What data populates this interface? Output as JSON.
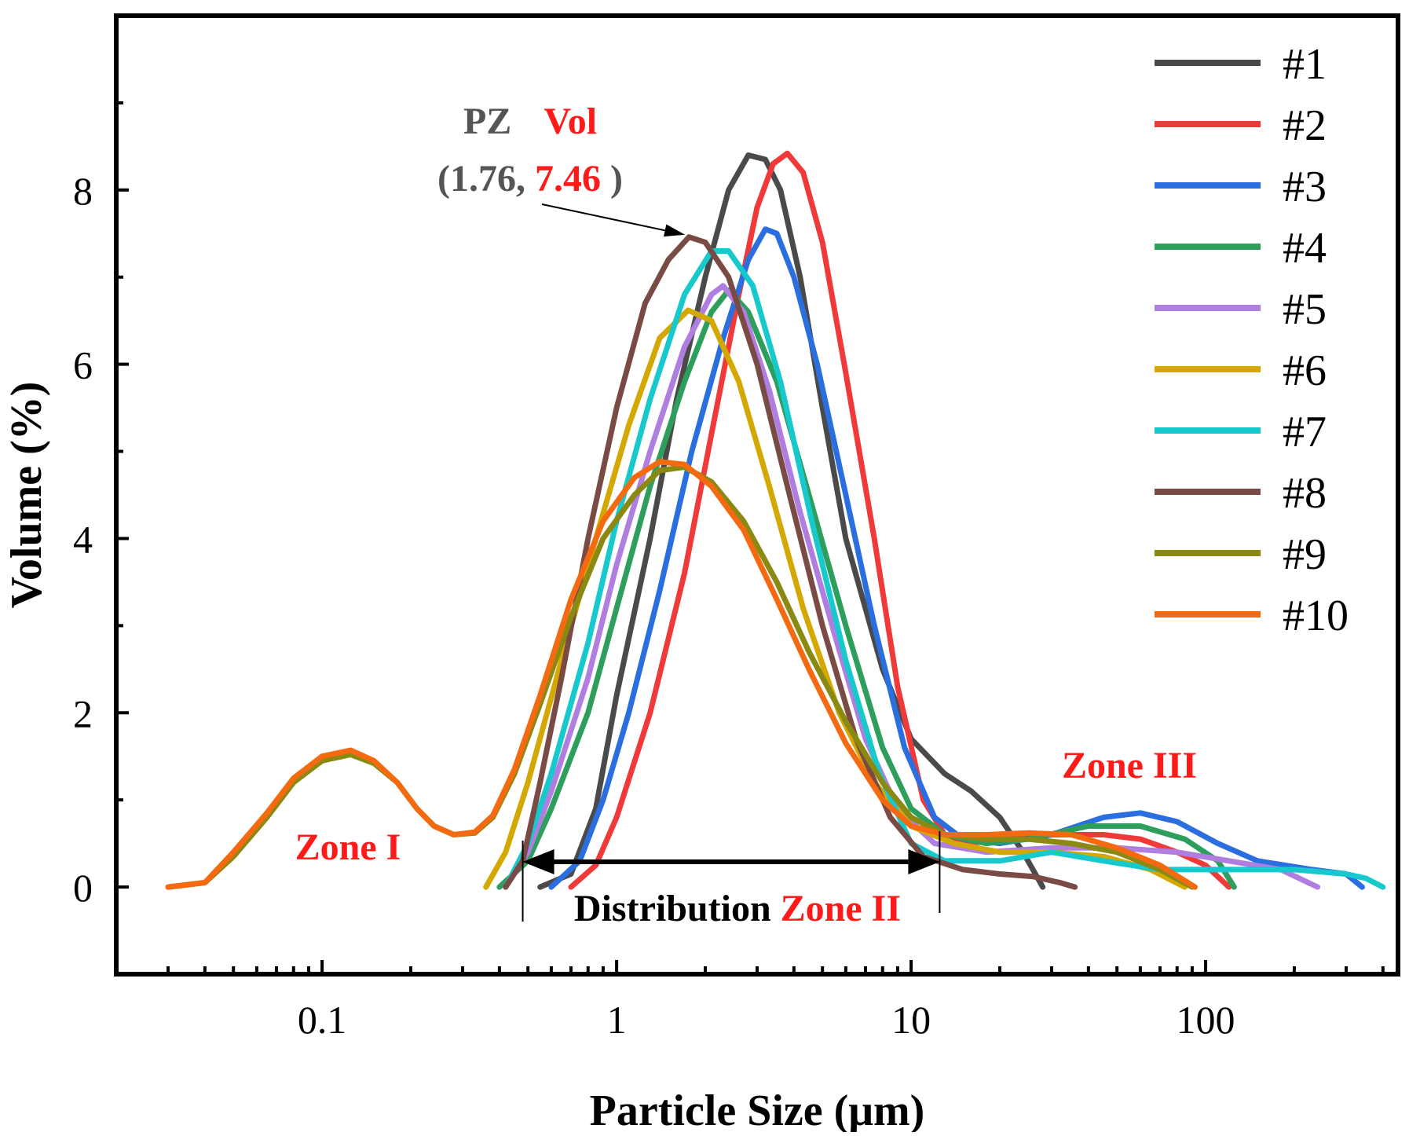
{
  "chart_data": {
    "type": "line",
    "title": "",
    "xlabel": "Particle Size (μm)",
    "ylabel": "Volume (%)",
    "xscale": "log",
    "xlim": [
      0.02,
      450
    ],
    "ylim": [
      -1,
      10
    ],
    "xticks": [
      0.1,
      1,
      10,
      100
    ],
    "xtick_labels": [
      "0.1",
      "1",
      "10",
      "100"
    ],
    "yticks": [
      0,
      2,
      4,
      6,
      8
    ],
    "ytick_labels": [
      "0",
      "2",
      "4",
      "6",
      "8"
    ],
    "grid": false,
    "legend_position": "top-right",
    "series": [
      {
        "name": "#1",
        "color": "#4a4a4a",
        "points": [
          [
            0.55,
            0
          ],
          [
            0.7,
            0.15
          ],
          [
            0.85,
            0.9
          ],
          [
            1.0,
            2.2
          ],
          [
            1.3,
            4.0
          ],
          [
            1.6,
            5.6
          ],
          [
            2.0,
            7.0
          ],
          [
            2.4,
            8.0
          ],
          [
            2.8,
            8.4
          ],
          [
            3.2,
            8.35
          ],
          [
            3.6,
            8.0
          ],
          [
            4.2,
            7.0
          ],
          [
            5.0,
            5.5
          ],
          [
            6.0,
            4.0
          ],
          [
            8.0,
            2.5
          ],
          [
            10,
            1.7
          ],
          [
            13,
            1.3
          ],
          [
            16,
            1.1
          ],
          [
            20,
            0.8
          ],
          [
            24,
            0.4
          ],
          [
            28,
            0
          ]
        ]
      },
      {
        "name": "#2",
        "color": "#f03a3a",
        "points": [
          [
            0.7,
            0
          ],
          [
            0.85,
            0.25
          ],
          [
            1.0,
            0.8
          ],
          [
            1.3,
            2.0
          ],
          [
            1.7,
            3.6
          ],
          [
            2.1,
            5.2
          ],
          [
            2.6,
            6.8
          ],
          [
            3.0,
            7.8
          ],
          [
            3.4,
            8.3
          ],
          [
            3.8,
            8.42
          ],
          [
            4.3,
            8.2
          ],
          [
            5.0,
            7.4
          ],
          [
            6.0,
            5.9
          ],
          [
            7.5,
            4.0
          ],
          [
            9.0,
            2.3
          ],
          [
            11,
            1.0
          ],
          [
            13,
            0.6
          ],
          [
            16,
            0.5
          ],
          [
            20,
            0.55
          ],
          [
            30,
            0.6
          ],
          [
            45,
            0.6
          ],
          [
            60,
            0.55
          ],
          [
            80,
            0.4
          ],
          [
            100,
            0.25
          ],
          [
            120,
            0
          ]
        ]
      },
      {
        "name": "#3",
        "color": "#2a6ee0",
        "points": [
          [
            0.6,
            0
          ],
          [
            0.75,
            0.3
          ],
          [
            0.9,
            1.0
          ],
          [
            1.1,
            2.0
          ],
          [
            1.4,
            3.4
          ],
          [
            1.8,
            5.0
          ],
          [
            2.3,
            6.3
          ],
          [
            2.8,
            7.2
          ],
          [
            3.2,
            7.55
          ],
          [
            3.5,
            7.5
          ],
          [
            4.0,
            7.0
          ],
          [
            4.8,
            6.0
          ],
          [
            6.0,
            4.5
          ],
          [
            7.5,
            3.0
          ],
          [
            9.5,
            1.6
          ],
          [
            12,
            0.8
          ],
          [
            15,
            0.55
          ],
          [
            20,
            0.5
          ],
          [
            30,
            0.6
          ],
          [
            45,
            0.8
          ],
          [
            60,
            0.85
          ],
          [
            80,
            0.75
          ],
          [
            110,
            0.5
          ],
          [
            150,
            0.3
          ],
          [
            230,
            0.2
          ],
          [
            300,
            0.15
          ],
          [
            340,
            0
          ]
        ]
      },
      {
        "name": "#4",
        "color": "#2e9e5c",
        "points": [
          [
            0.4,
            0
          ],
          [
            0.5,
            0.3
          ],
          [
            0.6,
            0.9
          ],
          [
            0.8,
            2.0
          ],
          [
            1.0,
            3.2
          ],
          [
            1.3,
            4.6
          ],
          [
            1.7,
            5.8
          ],
          [
            2.1,
            6.6
          ],
          [
            2.4,
            6.85
          ],
          [
            2.8,
            6.6
          ],
          [
            3.5,
            5.8
          ],
          [
            4.5,
            4.5
          ],
          [
            6.0,
            3.0
          ],
          [
            8.0,
            1.6
          ],
          [
            10,
            0.9
          ],
          [
            13,
            0.6
          ],
          [
            18,
            0.5
          ],
          [
            25,
            0.55
          ],
          [
            40,
            0.7
          ],
          [
            60,
            0.7
          ],
          [
            85,
            0.55
          ],
          [
            110,
            0.3
          ],
          [
            125,
            0
          ]
        ]
      },
      {
        "name": "#5",
        "color": "#b07ee0",
        "points": [
          [
            0.42,
            0
          ],
          [
            0.5,
            0.4
          ],
          [
            0.6,
            1.1
          ],
          [
            0.8,
            2.4
          ],
          [
            1.0,
            3.7
          ],
          [
            1.3,
            5.0
          ],
          [
            1.7,
            6.2
          ],
          [
            2.1,
            6.8
          ],
          [
            2.3,
            6.9
          ],
          [
            2.7,
            6.6
          ],
          [
            3.3,
            5.7
          ],
          [
            4.2,
            4.3
          ],
          [
            5.5,
            2.9
          ],
          [
            7.0,
            1.7
          ],
          [
            9.0,
            0.9
          ],
          [
            12,
            0.5
          ],
          [
            18,
            0.4
          ],
          [
            30,
            0.45
          ],
          [
            50,
            0.45
          ],
          [
            80,
            0.4
          ],
          [
            120,
            0.3
          ],
          [
            180,
            0.2
          ],
          [
            240,
            0
          ]
        ]
      },
      {
        "name": "#6",
        "color": "#d4a800",
        "points": [
          [
            0.36,
            0
          ],
          [
            0.42,
            0.4
          ],
          [
            0.5,
            1.2
          ],
          [
            0.65,
            2.6
          ],
          [
            0.85,
            4.0
          ],
          [
            1.1,
            5.3
          ],
          [
            1.4,
            6.3
          ],
          [
            1.75,
            6.62
          ],
          [
            2.1,
            6.5
          ],
          [
            2.6,
            5.8
          ],
          [
            3.3,
            4.6
          ],
          [
            4.3,
            3.2
          ],
          [
            5.7,
            2.0
          ],
          [
            7.5,
            1.2
          ],
          [
            10,
            0.7
          ],
          [
            14,
            0.5
          ],
          [
            20,
            0.4
          ],
          [
            30,
            0.4
          ],
          [
            45,
            0.35
          ],
          [
            65,
            0.2
          ],
          [
            85,
            0
          ]
        ]
      },
      {
        "name": "#7",
        "color": "#17c8cc",
        "points": [
          [
            0.42,
            0
          ],
          [
            0.5,
            0.5
          ],
          [
            0.6,
            1.3
          ],
          [
            0.8,
            2.8
          ],
          [
            1.0,
            4.2
          ],
          [
            1.3,
            5.6
          ],
          [
            1.7,
            6.8
          ],
          [
            2.1,
            7.3
          ],
          [
            2.4,
            7.3
          ],
          [
            2.9,
            6.9
          ],
          [
            3.6,
            5.8
          ],
          [
            4.6,
            4.2
          ],
          [
            6.0,
            2.6
          ],
          [
            7.8,
            1.3
          ],
          [
            10,
            0.5
          ],
          [
            13,
            0.3
          ],
          [
            20,
            0.3
          ],
          [
            30,
            0.4
          ],
          [
            45,
            0.3
          ],
          [
            70,
            0.2
          ],
          [
            120,
            0.2
          ],
          [
            200,
            0.2
          ],
          [
            300,
            0.15
          ],
          [
            350,
            0.1
          ],
          [
            400,
            0
          ]
        ]
      },
      {
        "name": "#8",
        "color": "#7a4a44",
        "points": [
          [
            0.42,
            0
          ],
          [
            0.48,
            0.3
          ],
          [
            0.55,
            1.2
          ],
          [
            0.65,
            2.4
          ],
          [
            0.8,
            4.0
          ],
          [
            1.0,
            5.5
          ],
          [
            1.25,
            6.7
          ],
          [
            1.5,
            7.2
          ],
          [
            1.76,
            7.46
          ],
          [
            2.0,
            7.4
          ],
          [
            2.4,
            7.0
          ],
          [
            3.0,
            6.0
          ],
          [
            3.8,
            4.6
          ],
          [
            5.0,
            3.0
          ],
          [
            6.5,
            1.7
          ],
          [
            8.5,
            0.8
          ],
          [
            11,
            0.35
          ],
          [
            15,
            0.2
          ],
          [
            20,
            0.15
          ],
          [
            26,
            0.12
          ],
          [
            32,
            0.05
          ],
          [
            36,
            0
          ]
        ]
      },
      {
        "name": "#9",
        "color": "#8a8a12",
        "points": [
          [
            0.03,
            0
          ],
          [
            0.04,
            0.05
          ],
          [
            0.05,
            0.35
          ],
          [
            0.065,
            0.8
          ],
          [
            0.08,
            1.2
          ],
          [
            0.1,
            1.45
          ],
          [
            0.125,
            1.52
          ],
          [
            0.15,
            1.42
          ],
          [
            0.18,
            1.2
          ],
          [
            0.21,
            0.9
          ],
          [
            0.24,
            0.7
          ],
          [
            0.28,
            0.6
          ],
          [
            0.33,
            0.62
          ],
          [
            0.38,
            0.8
          ],
          [
            0.45,
            1.3
          ],
          [
            0.55,
            2.1
          ],
          [
            0.7,
            3.1
          ],
          [
            0.9,
            4.0
          ],
          [
            1.15,
            4.5
          ],
          [
            1.4,
            4.78
          ],
          [
            1.7,
            4.82
          ],
          [
            2.1,
            4.65
          ],
          [
            2.7,
            4.2
          ],
          [
            3.5,
            3.5
          ],
          [
            4.5,
            2.7
          ],
          [
            6.0,
            1.9
          ],
          [
            8.0,
            1.2
          ],
          [
            10,
            0.8
          ],
          [
            13,
            0.6
          ],
          [
            18,
            0.55
          ],
          [
            25,
            0.55
          ],
          [
            35,
            0.5
          ],
          [
            50,
            0.4
          ],
          [
            70,
            0.2
          ],
          [
            90,
            0
          ]
        ]
      },
      {
        "name": "#10",
        "color": "#f56a10",
        "points": [
          [
            0.03,
            0
          ],
          [
            0.04,
            0.05
          ],
          [
            0.05,
            0.4
          ],
          [
            0.065,
            0.85
          ],
          [
            0.08,
            1.25
          ],
          [
            0.1,
            1.5
          ],
          [
            0.125,
            1.57
          ],
          [
            0.15,
            1.45
          ],
          [
            0.18,
            1.2
          ],
          [
            0.21,
            0.9
          ],
          [
            0.24,
            0.7
          ],
          [
            0.28,
            0.6
          ],
          [
            0.33,
            0.63
          ],
          [
            0.38,
            0.82
          ],
          [
            0.45,
            1.35
          ],
          [
            0.55,
            2.2
          ],
          [
            0.7,
            3.3
          ],
          [
            0.9,
            4.2
          ],
          [
            1.15,
            4.7
          ],
          [
            1.4,
            4.88
          ],
          [
            1.7,
            4.85
          ],
          [
            2.1,
            4.6
          ],
          [
            2.7,
            4.1
          ],
          [
            3.5,
            3.3
          ],
          [
            4.5,
            2.5
          ],
          [
            6.0,
            1.65
          ],
          [
            8.0,
            1.0
          ],
          [
            10,
            0.7
          ],
          [
            13,
            0.6
          ],
          [
            18,
            0.6
          ],
          [
            25,
            0.62
          ],
          [
            35,
            0.6
          ],
          [
            50,
            0.45
          ],
          [
            70,
            0.25
          ],
          [
            92,
            0
          ]
        ]
      }
    ],
    "annotations": {
      "peak_label_line1_left": "PZ",
      "peak_label_line1_right": "Vol",
      "peak_label_line2_open": "(1.76, ",
      "peak_label_line2_value": "7.46",
      "peak_label_line2_close": ")",
      "peak_point": [
        1.76,
        7.46
      ],
      "zone1": "Zone I",
      "zone2_prefix": "Distribution ",
      "zone2": "Zone II",
      "zone3": "Zone III",
      "zone2_range": [
        0.48,
        12.5
      ]
    },
    "colors": {
      "annotation_dark": "#555555",
      "annotation_red": "#ff1a1a"
    }
  }
}
